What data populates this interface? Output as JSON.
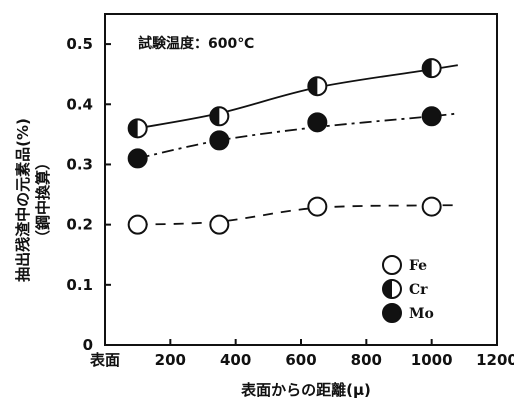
{
  "chart_data": {
    "type": "line",
    "annotation": "試験温度：600℃",
    "xlabel": "表面からの距離(μ)",
    "ylabel_line1": "抽出残渣中の元素品(%)",
    "ylabel_line2": "（鋼中換算）",
    "xlim": [
      0,
      1200
    ],
    "ylim": [
      0,
      0.55
    ],
    "x_ticks": [
      {
        "value": 0,
        "label": "表面"
      },
      {
        "value": 200,
        "label": "200"
      },
      {
        "value": 400,
        "label": "400"
      },
      {
        "value": 600,
        "label": "600"
      },
      {
        "value": 800,
        "label": "800"
      },
      {
        "value": 1000,
        "label": "1000"
      },
      {
        "value": 1200,
        "label": "1200"
      }
    ],
    "y_ticks": [
      {
        "value": 0,
        "label": "0"
      },
      {
        "value": 0.1,
        "label": "0.1"
      },
      {
        "value": 0.2,
        "label": "0.2"
      },
      {
        "value": 0.3,
        "label": "0.3"
      },
      {
        "value": 0.4,
        "label": "0.4"
      },
      {
        "value": 0.5,
        "label": "0.5"
      }
    ],
    "grid": false,
    "legend_position": "bottom-right",
    "series": [
      {
        "name": "Fe",
        "marker": "open-circle",
        "line": "dashed",
        "points": [
          [
            100,
            0.2
          ],
          [
            350,
            0.2
          ],
          [
            650,
            0.23
          ],
          [
            1000,
            0.23
          ]
        ],
        "curve": [
          [
            100,
            0.2
          ],
          [
            350,
            0.205
          ],
          [
            650,
            0.228
          ],
          [
            1000,
            0.232
          ],
          [
            1080,
            0.232
          ]
        ]
      },
      {
        "name": "Cr",
        "marker": "half-filled-circle",
        "line": "solid",
        "points": [
          [
            100,
            0.36
          ],
          [
            350,
            0.38
          ],
          [
            650,
            0.43
          ],
          [
            1000,
            0.46
          ]
        ],
        "curve": [
          [
            100,
            0.36
          ],
          [
            350,
            0.385
          ],
          [
            650,
            0.428
          ],
          [
            1000,
            0.458
          ],
          [
            1080,
            0.465
          ]
        ]
      },
      {
        "name": "Mo",
        "marker": "filled-circle",
        "line": "dash-dot",
        "points": [
          [
            100,
            0.31
          ],
          [
            350,
            0.34
          ],
          [
            650,
            0.37
          ],
          [
            1000,
            0.38
          ]
        ],
        "curve": [
          [
            100,
            0.31
          ],
          [
            350,
            0.34
          ],
          [
            650,
            0.362
          ],
          [
            1000,
            0.38
          ],
          [
            1080,
            0.385
          ]
        ]
      }
    ],
    "legend": [
      {
        "name": "Fe",
        "marker": "open-circle"
      },
      {
        "name": "Cr",
        "marker": "half-filled-circle"
      },
      {
        "name": "Mo",
        "marker": "filled-circle"
      }
    ]
  }
}
